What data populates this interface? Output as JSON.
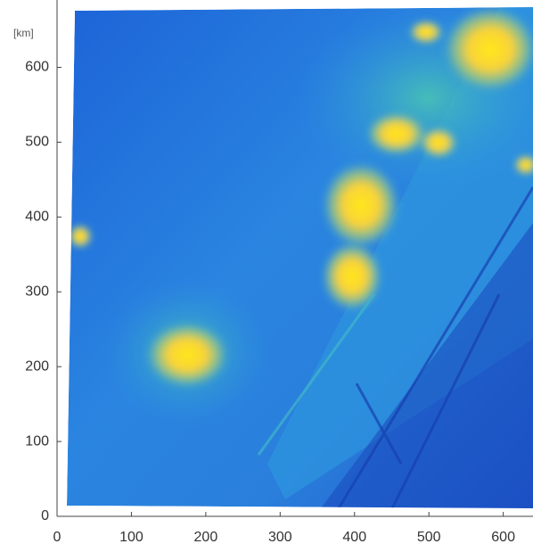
{
  "chart_data": {
    "type": "heatmap",
    "y_unit_label": "[km]",
    "xlim": [
      0,
      640
    ],
    "ylim": [
      0,
      690
    ],
    "xticks": [
      0,
      100,
      200,
      300,
      400,
      500,
      600
    ],
    "yticks": [
      0,
      100,
      200,
      300,
      400,
      500,
      600
    ]
  }
}
